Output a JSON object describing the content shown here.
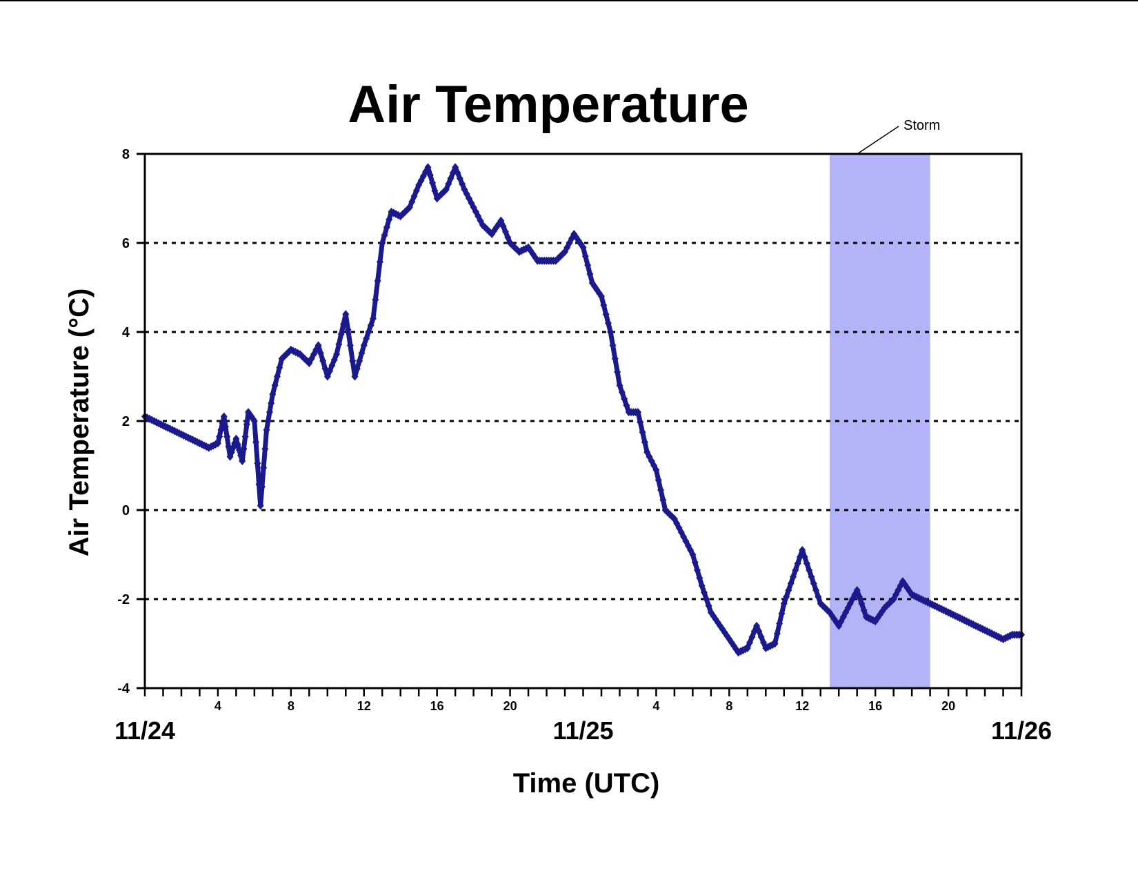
{
  "chart_data": {
    "type": "scatter",
    "title": "Air Temperature",
    "xlabel": "Time (UTC)",
    "ylabel": "Air Temperature (°C)",
    "ylim": [
      -4,
      8
    ],
    "xlim": [
      "11/24 00:00",
      "11/26 00:00"
    ],
    "y_ticks": [
      "8",
      "6",
      "4",
      "2",
      "0",
      "-2",
      "-4"
    ],
    "x_hour_ticks": [
      {
        "label": "4",
        "hour": 4
      },
      {
        "label": "8",
        "hour": 8
      },
      {
        "label": "12",
        "hour": 12
      },
      {
        "label": "16",
        "hour": 16
      },
      {
        "label": "20",
        "hour": 20
      },
      {
        "label": "4",
        "hour": 28
      },
      {
        "label": "8",
        "hour": 32
      },
      {
        "label": "12",
        "hour": 36
      },
      {
        "label": "16",
        "hour": 40
      },
      {
        "label": "20",
        "hour": 44
      }
    ],
    "x_date_labels": [
      {
        "label": "11/24",
        "hour": 0
      },
      {
        "label": "11/25",
        "hour": 24
      },
      {
        "label": "11/26",
        "hour": 48
      }
    ],
    "grid": "horizontal dotted at 6, 4, 2, 0, -2",
    "marker_color": "#1a1a8c",
    "shade_color": "#b3b3f7",
    "annotation": {
      "text": "Storm",
      "x_start": "11/25 13:30",
      "x_end": "11/25 19:00"
    },
    "series": [
      {
        "x": [
          "11/24 00:00",
          "11/24 00:30",
          "11/24 01:00",
          "11/24 01:30",
          "11/24 02:00",
          "11/24 02:30",
          "11/24 03:00",
          "11/24 03:30",
          "11/24 04:00",
          "11/24 04:20",
          "11/24 04:40",
          "11/24 05:00",
          "11/24 05:20",
          "11/24 05:40",
          "11/24 06:00",
          "11/24 06:20",
          "11/24 06:40",
          "11/24 07:00",
          "11/24 07:30",
          "11/24 08:00",
          "11/24 08:30",
          "11/24 09:00",
          "11/24 09:30",
          "11/24 10:00",
          "11/24 10:30",
          "11/24 11:00",
          "11/24 11:30",
          "11/24 12:00",
          "11/24 12:30",
          "11/24 13:00",
          "11/24 13:30",
          "11/24 14:00",
          "11/24 14:30",
          "11/24 15:00",
          "11/24 15:30",
          "11/24 16:00",
          "11/24 16:30",
          "11/24 17:00",
          "11/24 17:30",
          "11/24 18:00",
          "11/24 18:30",
          "11/24 19:00",
          "11/24 19:30",
          "11/24 20:00",
          "11/24 20:30",
          "11/24 21:00",
          "11/24 21:30",
          "11/24 22:00",
          "11/24 22:30",
          "11/24 23:00",
          "11/24 23:30",
          "11/25 00:00",
          "11/25 00:30",
          "11/25 01:00",
          "11/25 01:30",
          "11/25 02:00",
          "11/25 02:30",
          "11/25 03:00",
          "11/25 03:30",
          "11/25 04:00",
          "11/25 04:30",
          "11/25 05:00",
          "11/25 05:30",
          "11/25 06:00",
          "11/25 06:30",
          "11/25 07:00",
          "11/25 07:30",
          "11/25 08:00",
          "11/25 08:30",
          "11/25 09:00",
          "11/25 09:30",
          "11/25 10:00",
          "11/25 10:30",
          "11/25 11:00",
          "11/25 11:30",
          "11/25 12:00",
          "11/25 12:30",
          "11/25 13:00",
          "11/25 13:30",
          "11/25 14:00",
          "11/25 14:30",
          "11/25 15:00",
          "11/25 15:30",
          "11/25 16:00",
          "11/25 16:30",
          "11/25 17:00",
          "11/25 17:30",
          "11/25 18:00",
          "11/25 18:30",
          "11/25 19:00",
          "11/25 19:30",
          "11/25 20:00",
          "11/25 20:30",
          "11/25 21:00",
          "11/25 21:30",
          "11/25 22:00",
          "11/25 22:30",
          "11/25 23:00",
          "11/25 23:30",
          "11/26 00:00"
        ],
        "y": [
          2.1,
          2.0,
          1.9,
          1.8,
          1.7,
          1.6,
          1.5,
          1.4,
          1.5,
          2.1,
          1.2,
          1.6,
          1.1,
          2.2,
          2.0,
          0.1,
          1.8,
          2.6,
          3.4,
          3.6,
          3.5,
          3.3,
          3.7,
          3.0,
          3.5,
          4.4,
          3.0,
          3.7,
          4.3,
          6.0,
          6.7,
          6.6,
          6.8,
          7.3,
          7.7,
          7.0,
          7.2,
          7.7,
          7.2,
          6.8,
          6.4,
          6.2,
          6.5,
          6.0,
          5.8,
          5.9,
          5.6,
          5.6,
          5.6,
          5.8,
          6.2,
          5.9,
          5.1,
          4.8,
          4.0,
          2.8,
          2.2,
          2.2,
          1.3,
          0.9,
          0.0,
          -0.2,
          -0.6,
          -1.0,
          -1.7,
          -2.3,
          -2.6,
          -2.9,
          -3.2,
          -3.1,
          -2.6,
          -3.1,
          -3.0,
          -2.1,
          -1.5,
          -0.9,
          -1.5,
          -2.1,
          -2.3,
          -2.6,
          -2.2,
          -1.8,
          -2.4,
          -2.5,
          -2.2,
          -2.0,
          -1.6,
          -1.9,
          -2.0,
          -2.1,
          -2.2,
          -2.3,
          -2.4,
          -2.5,
          -2.6,
          -2.7,
          -2.8,
          -2.9,
          -2.8,
          -2.8
        ]
      }
    ]
  }
}
